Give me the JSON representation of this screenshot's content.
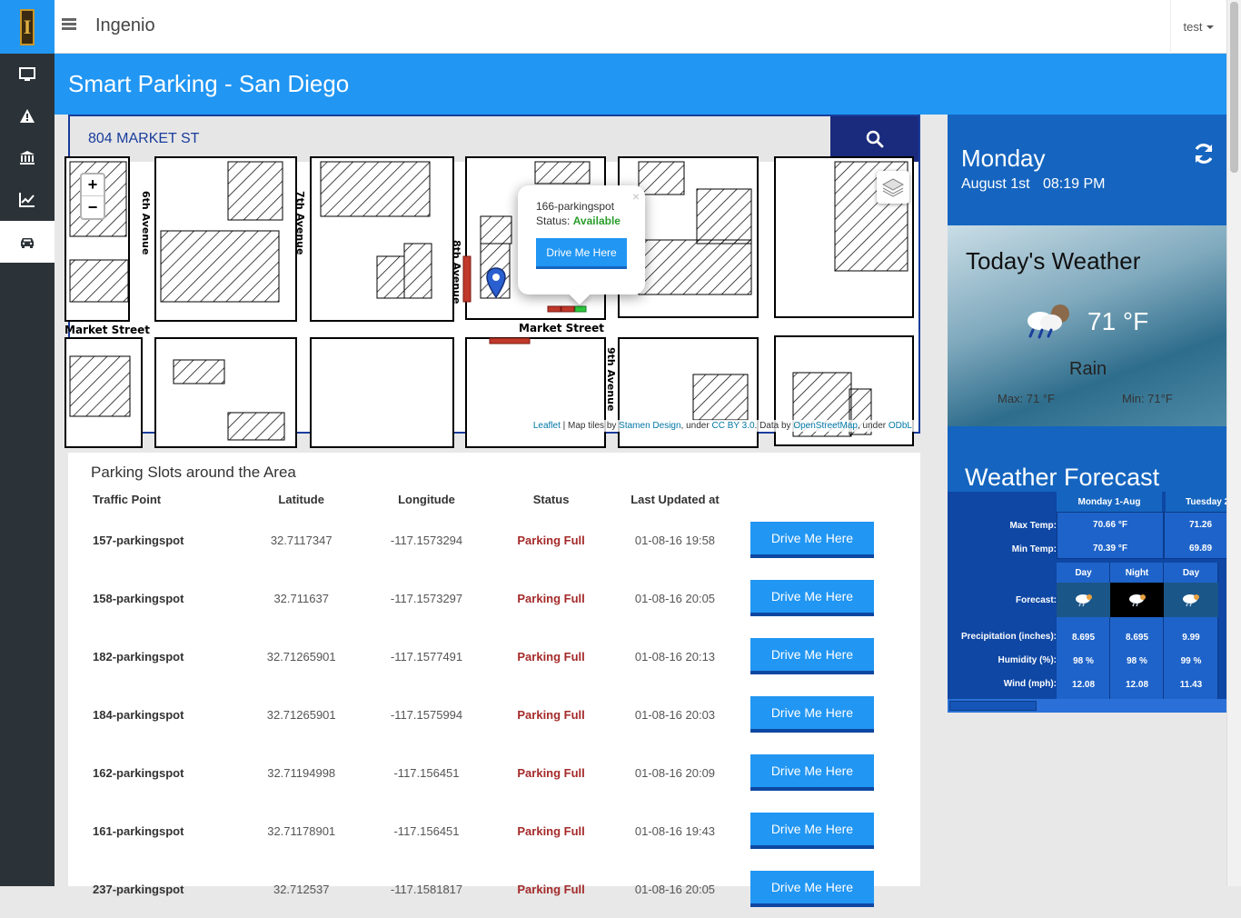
{
  "app": {
    "name": "Ingenio",
    "user": "test",
    "page_title": "Smart Parking - San Diego"
  },
  "sidebar": {
    "items": [
      {
        "name": "dashboard",
        "icon": "monitor-icon"
      },
      {
        "name": "alerts",
        "icon": "warning-icon"
      },
      {
        "name": "buildings",
        "icon": "bank-icon"
      },
      {
        "name": "analytics",
        "icon": "line-chart-icon"
      },
      {
        "name": "parking",
        "icon": "car-icon",
        "active": true
      }
    ]
  },
  "search": {
    "value": "804 MARKET ST"
  },
  "map": {
    "streets": [
      "6th Avenue",
      "7th Avenue",
      "8th Avenue",
      "Market Street",
      "Market Street",
      "9th Avenue"
    ],
    "popup": {
      "name": "166-parkingspot",
      "status_label": "Status:",
      "status_value": "Available",
      "button": "Drive Me Here"
    },
    "attribution": {
      "leaflet": "Leaflet",
      "tiles": "| Map tiles by",
      "stamen": "Stamen Design",
      "under": ", under",
      "ccby": "CC BY 3.0",
      "data": ". Data by",
      "osm": "OpenStreetMap",
      "under2": ", under",
      "odbl": "ODbL"
    }
  },
  "slots": {
    "title": "Parking Slots around the Area",
    "columns": [
      "Traffic Point",
      "Latitude",
      "Longitude",
      "Status",
      "Last Updated at"
    ],
    "button_label": "Drive Me Here",
    "rows": [
      {
        "point": "157-parkingspot",
        "lat": "32.7117347",
        "lon": "-117.1573294",
        "status": "Parking Full",
        "updated": "01-08-16 19:58"
      },
      {
        "point": "158-parkingspot",
        "lat": "32.711637",
        "lon": "-117.1573297",
        "status": "Parking Full",
        "updated": "01-08-16 20:05"
      },
      {
        "point": "182-parkingspot",
        "lat": "32.71265901",
        "lon": "-117.1577491",
        "status": "Parking Full",
        "updated": "01-08-16 20:13"
      },
      {
        "point": "184-parkingspot",
        "lat": "32.71265901",
        "lon": "-117.1575994",
        "status": "Parking Full",
        "updated": "01-08-16 20:03"
      },
      {
        "point": "162-parkingspot",
        "lat": "32.71194998",
        "lon": "-117.156451",
        "status": "Parking Full",
        "updated": "01-08-16 20:09"
      },
      {
        "point": "161-parkingspot",
        "lat": "32.71178901",
        "lon": "-117.156451",
        "status": "Parking Full",
        "updated": "01-08-16 19:43"
      },
      {
        "point": "237-parkingspot",
        "lat": "32.712537",
        "lon": "-117.1581817",
        "status": "Parking Full",
        "updated": "01-08-16 20:05"
      }
    ]
  },
  "weather": {
    "day": "Monday",
    "date": "August 1st",
    "time": "08:19 PM",
    "today_title": "Today's Weather",
    "temp": "71 °F",
    "condition": "Rain",
    "max": "Max: 71 °F",
    "min": "Min: 71°F",
    "forecast_title": "Weather Forecast",
    "forecast": {
      "days": [
        "Monday 1-Aug",
        "Tuesday 2"
      ],
      "labels": {
        "max": "Max Temp:",
        "min": "Min Temp:",
        "forecast": "Forecast:",
        "precip": "Precipitation (inches):",
        "humidity": "Humidity (%):",
        "wind": "Wind (mph):"
      },
      "max_temps": [
        "70.66 °F",
        "71.26"
      ],
      "min_temps": [
        "70.39 °F",
        "69.89"
      ],
      "periods": [
        "Day",
        "Night",
        "Day"
      ],
      "precip": [
        "8.695",
        "8.695",
        "9.99"
      ],
      "humidity": [
        "98 %",
        "98 %",
        "99 %"
      ],
      "wind": [
        "12.08",
        "12.08",
        "11.43"
      ]
    }
  },
  "colors": {
    "primary": "#2196f3",
    "sidebar": "#2c3338",
    "navy": "#1a2a7c",
    "status_full": "#a52a2a",
    "status_available": "#2a9d2a"
  }
}
